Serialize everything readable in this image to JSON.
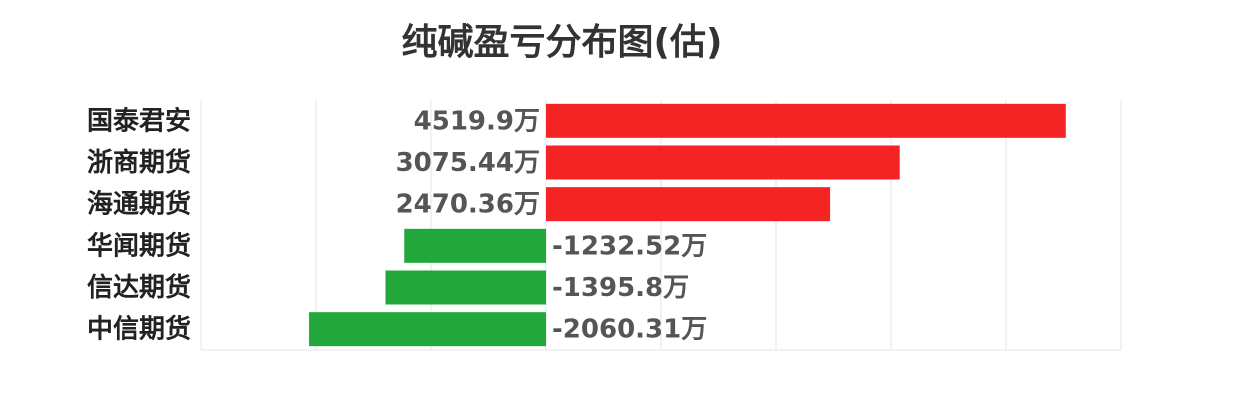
{
  "chart_data": {
    "type": "hbar",
    "title": "纯碱盈亏分布图(估)",
    "categories": [
      "国泰君安",
      "浙商期货",
      "海通期货",
      "华闻期货",
      "信达期货",
      "中信期货"
    ],
    "values": [
      4519.9,
      3075.44,
      2470.36,
      -1232.52,
      -1395.8,
      -2060.31
    ],
    "value_labels": [
      "4519.9万",
      "3075.44万",
      "2470.36万",
      "-1232.52万",
      "-1395.8万",
      "-2060.31万"
    ],
    "positive_color": "#f52424",
    "negative_color": "#22a83a",
    "xlim": [
      -3000,
      5000
    ],
    "xticks": [
      -3000,
      -2000,
      -1000,
      0,
      1000,
      2000,
      3000,
      4000,
      5000
    ],
    "grid": true
  }
}
